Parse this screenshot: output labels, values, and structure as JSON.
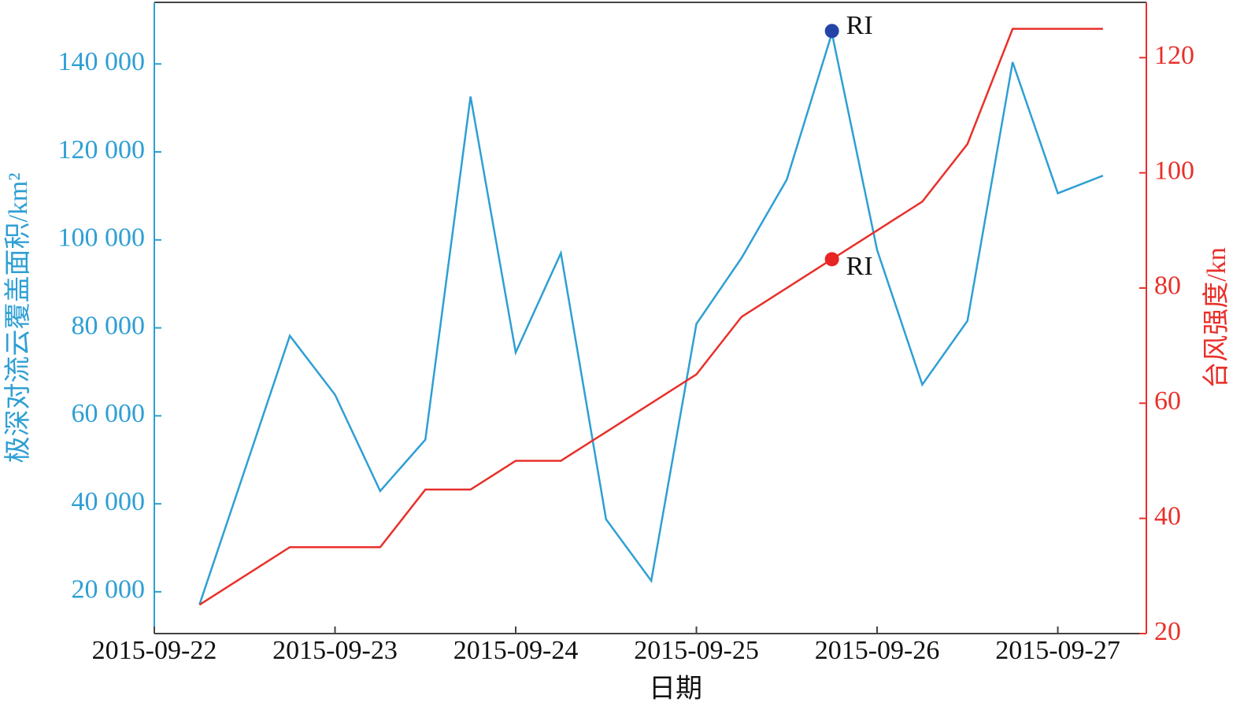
{
  "chart_data": {
    "type": "line",
    "x_label": "日期",
    "y_label": "极深对流云覆盖面积/km²",
    "y2_label": "台风强度/kn",
    "x": [
      0.25,
      0.5,
      0.75,
      1,
      1.25,
      1.5,
      1.75,
      2,
      2.25,
      2.5,
      2.75,
      3,
      3.25,
      3.5,
      3.75,
      4,
      4.25,
      4.5,
      4.75,
      5,
      5.25
    ],
    "xlim": [
      0,
      5.49
    ],
    "xticks": [
      {
        "value": 0,
        "label": "2015-09-22"
      },
      {
        "value": 1,
        "label": "2015-09-23"
      },
      {
        "value": 2,
        "label": "2015-09-24"
      },
      {
        "value": 3,
        "label": "2015-09-25"
      },
      {
        "value": 4,
        "label": "2015-09-26"
      },
      {
        "value": 5,
        "label": "2015-09-27"
      }
    ],
    "ylim": [
      10500,
      154000
    ],
    "yticks": [
      {
        "value": 20000,
        "label": "20 000"
      },
      {
        "value": 40000,
        "label": "40 000"
      },
      {
        "value": 60000,
        "label": "60 000"
      },
      {
        "value": 80000,
        "label": "80 000"
      },
      {
        "value": 100000,
        "label": "100 000"
      },
      {
        "value": 120000,
        "label": "120 000"
      },
      {
        "value": 140000,
        "label": "140 000"
      }
    ],
    "y2lim": [
      20,
      129.6
    ],
    "y2ticks": [
      20,
      40,
      60,
      80,
      100,
      120
    ],
    "series": [
      {
        "color": "#2e9fd4",
        "values": [
          17100,
          47600,
          78200,
          64800,
          42900,
          54600,
          132600,
          74400,
          97000,
          36500,
          22500,
          80900,
          95900,
          113700,
          147000,
          97700,
          67100,
          81600,
          140400,
          110600,
          114600
        ]
      },
      {
        "color": "#e8302a",
        "axis": "y2",
        "values": [
          25,
          30,
          35,
          35,
          35,
          45,
          45,
          50,
          50,
          55,
          60,
          65,
          75,
          80,
          85,
          90,
          95,
          105,
          125,
          125,
          125
        ]
      }
    ],
    "annotations": [
      {
        "text": "RI",
        "x": 3.75,
        "y": 147500,
        "color": "#2444a8"
      },
      {
        "text": "RI",
        "x": 3.75,
        "y": 85,
        "axis": "y2",
        "color": "#e82424"
      }
    ]
  }
}
